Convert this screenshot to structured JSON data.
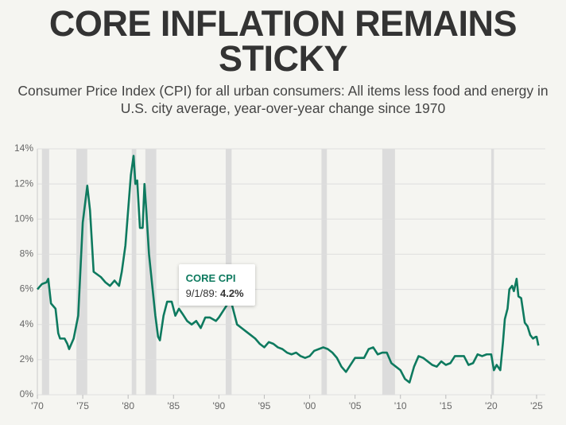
{
  "chart_data": {
    "type": "line",
    "title": "CORE INFLATION REMAINS STICKY",
    "subtitle": "Consumer Price Index (CPI) for all urban consumers: All items less food and energy in U.S. city average, year-over-year change since 1970",
    "x": [
      1970.0,
      1970.5,
      1971.0,
      1971.2,
      1971.5,
      1972.0,
      1972.3,
      1972.5,
      1973.0,
      1973.3,
      1973.5,
      1974.0,
      1974.5,
      1975.0,
      1975.5,
      1975.8,
      1976.2,
      1977.0,
      1977.5,
      1978.0,
      1978.5,
      1979.0,
      1979.3,
      1979.7,
      1980.0,
      1980.3,
      1980.6,
      1980.8,
      1981.0,
      1981.3,
      1981.6,
      1981.8,
      1982.0,
      1982.3,
      1982.6,
      1983.0,
      1983.3,
      1983.5,
      1983.9,
      1984.3,
      1984.8,
      1985.2,
      1985.6,
      1986.0,
      1986.5,
      1987.0,
      1987.5,
      1988.0,
      1988.5,
      1989.0,
      1989.67,
      1990.0,
      1990.5,
      1991.0,
      1991.3,
      1991.7,
      1992.0,
      1992.5,
      1993.0,
      1993.5,
      1994.0,
      1994.5,
      1995.0,
      1995.5,
      1996.0,
      1996.5,
      1997.0,
      1997.5,
      1998.0,
      1998.5,
      1999.0,
      1999.5,
      2000.0,
      2000.5,
      2001.0,
      2001.5,
      2002.0,
      2002.5,
      2003.0,
      2003.5,
      2004.0,
      2004.5,
      2005.0,
      2005.5,
      2006.0,
      2006.5,
      2007.0,
      2007.5,
      2008.0,
      2008.5,
      2009.0,
      2009.5,
      2010.0,
      2010.5,
      2011.0,
      2011.5,
      2012.0,
      2012.5,
      2013.0,
      2013.5,
      2014.0,
      2014.5,
      2015.0,
      2015.5,
      2016.0,
      2016.5,
      2017.0,
      2017.5,
      2018.0,
      2018.5,
      2019.0,
      2019.5,
      2020.0,
      2020.3,
      2020.6,
      2021.0,
      2021.3,
      2021.5,
      2021.8,
      2022.0,
      2022.3,
      2022.5,
      2022.8,
      2023.0,
      2023.3,
      2023.7,
      2024.0,
      2024.3,
      2024.6,
      2024.9,
      2025.0,
      2025.2
    ],
    "series": [
      {
        "color": "#0e7a5f",
        "values": [
          6.0,
          6.3,
          6.4,
          6.6,
          5.2,
          4.9,
          3.5,
          3.2,
          3.2,
          2.9,
          2.6,
          3.2,
          4.5,
          9.8,
          11.9,
          10.5,
          7.0,
          6.7,
          6.4,
          6.2,
          6.5,
          6.2,
          7.0,
          8.5,
          10.5,
          12.5,
          13.6,
          12.0,
          12.2,
          9.5,
          9.5,
          12.0,
          10.5,
          8.0,
          6.5,
          4.5,
          3.3,
          3.1,
          4.5,
          5.3,
          5.3,
          4.5,
          4.9,
          4.6,
          4.2,
          4.0,
          4.2,
          3.8,
          4.4,
          4.4,
          4.2,
          4.4,
          4.8,
          5.2,
          5.4,
          4.6,
          4.0,
          3.8,
          3.6,
          3.4,
          3.2,
          2.9,
          2.7,
          3.0,
          2.9,
          2.7,
          2.6,
          2.4,
          2.3,
          2.4,
          2.2,
          2.1,
          2.2,
          2.5,
          2.6,
          2.7,
          2.6,
          2.4,
          2.1,
          1.6,
          1.3,
          1.7,
          2.1,
          2.1,
          2.1,
          2.6,
          2.7,
          2.3,
          2.4,
          2.4,
          1.8,
          1.6,
          1.4,
          0.9,
          0.7,
          1.6,
          2.2,
          2.1,
          1.9,
          1.7,
          1.6,
          1.9,
          1.7,
          1.8,
          2.2,
          2.2,
          2.2,
          1.7,
          1.8,
          2.3,
          2.2,
          2.3,
          2.3,
          1.4,
          1.7,
          1.4,
          3.0,
          4.3,
          4.9,
          6.0,
          6.2,
          5.9,
          6.6,
          5.6,
          5.5,
          4.1,
          3.9,
          3.4,
          3.2,
          3.3,
          3.3,
          2.8
        ]
      }
    ],
    "recessions": [
      [
        1970.5,
        1971.3
      ],
      [
        1974.3,
        1975.5
      ],
      [
        1980.4,
        1980.9
      ],
      [
        1981.9,
        1983.1
      ],
      [
        1990.75,
        1991.4
      ],
      [
        2001.3,
        2001.9
      ],
      [
        2008.0,
        2009.4
      ],
      [
        2020.0,
        2020.3
      ]
    ],
    "xlim": [
      1970,
      2025
    ],
    "xticks": [
      {
        "value": 1970,
        "label": "'70"
      },
      {
        "value": 1975,
        "label": "'75"
      },
      {
        "value": 1980,
        "label": "'80"
      },
      {
        "value": 1985,
        "label": "'85"
      },
      {
        "value": 1990,
        "label": "'90"
      },
      {
        "value": 1995,
        "label": "'95"
      },
      {
        "value": 2000,
        "label": "'00"
      },
      {
        "value": 2005,
        "label": "'05"
      },
      {
        "value": 2010,
        "label": "'10"
      },
      {
        "value": 2015,
        "label": "'15"
      },
      {
        "value": 2020,
        "label": "'20"
      },
      {
        "value": 2025,
        "label": "'25"
      }
    ],
    "ylim": [
      0,
      14
    ],
    "yticks": [
      {
        "value": 0,
        "label": "0%"
      },
      {
        "value": 2,
        "label": "2%"
      },
      {
        "value": 4,
        "label": "4%"
      },
      {
        "value": 6,
        "label": "6%"
      },
      {
        "value": 8,
        "label": "8%"
      },
      {
        "value": 10,
        "label": "10%"
      },
      {
        "value": 12,
        "label": "12%"
      },
      {
        "value": 14,
        "label": "14%"
      }
    ],
    "grid": true,
    "tooltip": {
      "label": "CORE CPI",
      "date": "9/1/89:",
      "x": 1989.67,
      "value": 4.2,
      "value_label": "4.2%"
    }
  }
}
